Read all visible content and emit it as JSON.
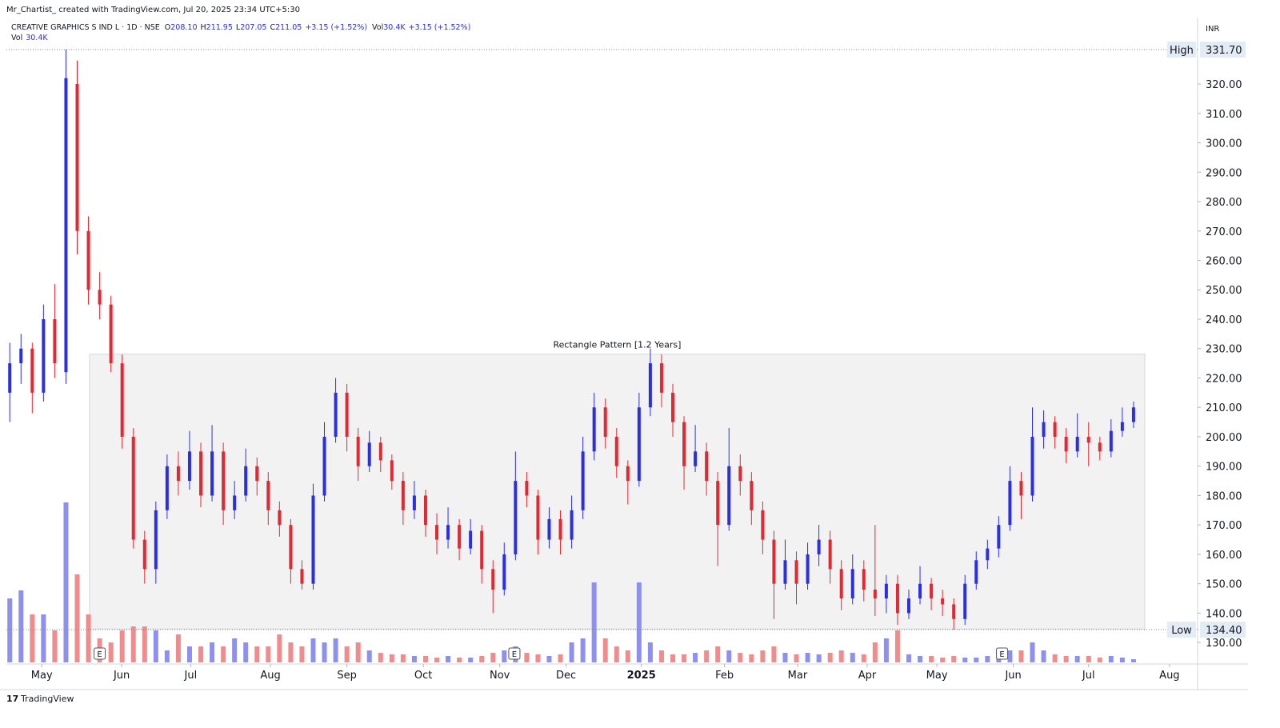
{
  "header": {
    "credit": "Mr_Chartist_ created with TradingView.com, Jul 20, 2025 23:34 UTC+5:30",
    "symbol": "CREATIVE GRAPHICS S IND L · 1D · NSE",
    "ohlc": [
      {
        "k": "O",
        "v": "208.10"
      },
      {
        "k": "H",
        "v": "211.95"
      },
      {
        "k": "L",
        "v": "207.05"
      },
      {
        "k": "C",
        "v": "211.05"
      }
    ],
    "change": "+3.15 (+1.52%)",
    "vol_key": "Vol",
    "vol_value": "30.4K",
    "vol_change": "+3.15 (+1.52%)",
    "vol_line_key": "Vol",
    "vol_line_value": "30.4K"
  },
  "footer": {
    "logo": "TradingView"
  },
  "chart_data": {
    "type": "candlestick",
    "currency": "INR",
    "categories": [
      null,
      null,
      null,
      null,
      null,
      null,
      null,
      null,
      null,
      null,
      null,
      null,
      null,
      null,
      null,
      null,
      null,
      null,
      null,
      null,
      null,
      null,
      null,
      null,
      null,
      null,
      null,
      null,
      null,
      null,
      null,
      null,
      null,
      null,
      null,
      null,
      null,
      null,
      null,
      null,
      null,
      null,
      null,
      null,
      null,
      null,
      null,
      null,
      null,
      null,
      null,
      null,
      null,
      null,
      null,
      null,
      null,
      null,
      null,
      null,
      null,
      null,
      null,
      null,
      null,
      null,
      null,
      null,
      null,
      null,
      null,
      null,
      null,
      null,
      null,
      null,
      null,
      null,
      null,
      null,
      null,
      null,
      null,
      null,
      null,
      null,
      null,
      null,
      null,
      null,
      null,
      null,
      null,
      null,
      null,
      null,
      null,
      null,
      null,
      null,
      null
    ],
    "open": [
      215,
      225,
      230,
      215,
      240,
      222,
      320,
      270,
      250,
      245,
      225,
      200,
      165,
      155,
      175,
      190,
      185,
      195,
      180,
      195,
      175,
      180,
      190,
      185,
      175,
      170,
      155,
      150,
      180,
      200,
      215,
      200,
      190,
      198,
      192,
      185,
      175,
      180,
      170,
      165,
      170,
      162,
      168,
      155,
      148,
      160,
      185,
      180,
      165,
      172,
      165,
      175,
      195,
      210,
      200,
      190,
      185,
      210,
      225,
      215,
      205,
      190,
      195,
      185,
      170,
      190,
      185,
      175,
      165,
      150,
      158,
      150,
      160,
      165,
      155,
      145,
      155,
      148,
      145,
      150,
      140,
      145,
      150,
      145,
      143,
      138,
      150,
      158,
      162,
      170,
      185,
      180,
      200,
      205,
      200,
      195,
      200,
      198,
      195,
      202,
      205
    ],
    "high": [
      232,
      235,
      232,
      245,
      252,
      331.7,
      328,
      275,
      256,
      248,
      228,
      203,
      168,
      178,
      194,
      195,
      202,
      198,
      204,
      198,
      185,
      196,
      193,
      188,
      178,
      172,
      158,
      184,
      205,
      220,
      218,
      203,
      202,
      200,
      194,
      188,
      185,
      182,
      174,
      176,
      172,
      172,
      170,
      158,
      164,
      195,
      188,
      182,
      176,
      175,
      180,
      200,
      215,
      213,
      203,
      192,
      215,
      230,
      228,
      218,
      207,
      204,
      198,
      188,
      203,
      194,
      188,
      178,
      168,
      165,
      161,
      164,
      170,
      168,
      158,
      160,
      158,
      170,
      153,
      153,
      148,
      156,
      152,
      148,
      145,
      153,
      161,
      165,
      173,
      190,
      188,
      210,
      209,
      207,
      203,
      208,
      205,
      200,
      206,
      210,
      212
    ],
    "low": [
      205,
      218,
      208,
      212,
      220,
      218,
      262,
      245,
      240,
      222,
      196,
      162,
      150,
      150,
      172,
      180,
      182,
      176,
      178,
      170,
      172,
      178,
      180,
      170,
      166,
      150,
      148,
      148,
      178,
      198,
      195,
      185,
      188,
      188,
      182,
      170,
      172,
      166,
      160,
      162,
      158,
      160,
      150,
      140,
      146,
      158,
      176,
      160,
      162,
      160,
      162,
      172,
      192,
      196,
      186,
      177,
      183,
      207,
      210,
      200,
      182,
      188,
      180,
      156,
      168,
      180,
      170,
      160,
      138,
      148,
      143,
      148,
      156,
      150,
      141,
      143,
      144,
      139,
      140,
      136,
      138,
      143,
      141,
      139,
      134.4,
      136,
      148,
      155,
      159,
      168,
      172,
      178,
      196,
      196,
      191,
      193,
      190,
      192,
      193,
      200,
      203
    ],
    "close": [
      225,
      230,
      215,
      240,
      225,
      322,
      270,
      250,
      245,
      225,
      200,
      165,
      155,
      175,
      190,
      185,
      195,
      180,
      195,
      175,
      180,
      190,
      185,
      175,
      170,
      155,
      150,
      180,
      200,
      215,
      200,
      190,
      198,
      192,
      185,
      175,
      180,
      170,
      165,
      170,
      162,
      168,
      155,
      148,
      160,
      185,
      180,
      165,
      172,
      165,
      175,
      195,
      210,
      200,
      190,
      185,
      210,
      225,
      215,
      205,
      190,
      195,
      185,
      170,
      190,
      185,
      175,
      165,
      150,
      158,
      150,
      160,
      165,
      155,
      145,
      155,
      148,
      145,
      150,
      140,
      145,
      150,
      145,
      143,
      138,
      150,
      158,
      162,
      170,
      185,
      180,
      200,
      205,
      200,
      195,
      200,
      198,
      195,
      202,
      205,
      210
    ],
    "volume": [
      608,
      684,
      456,
      456,
      304,
      1520,
      836,
      456,
      228,
      190,
      304,
      342,
      342,
      304,
      114,
      266,
      152,
      152,
      190,
      152,
      228,
      190,
      152,
      152,
      266,
      190,
      152,
      228,
      190,
      228,
      152,
      190,
      114,
      91,
      76,
      76,
      61,
      61,
      46,
      61,
      46,
      46,
      61,
      91,
      114,
      152,
      91,
      76,
      61,
      76,
      190,
      228,
      760,
      228,
      152,
      114,
      760,
      190,
      114,
      76,
      76,
      91,
      114,
      152,
      114,
      91,
      76,
      114,
      152,
      91,
      76,
      91,
      76,
      91,
      114,
      91,
      76,
      190,
      228,
      304,
      76,
      61,
      61,
      46,
      61,
      46,
      46,
      61,
      76,
      114,
      114,
      190,
      114,
      76,
      61,
      61,
      61,
      46,
      61,
      46,
      30.4
    ],
    "up_color": "#2b2ee8",
    "down_color": "#e8262f",
    "volume_up_color": "#8d90f0",
    "volume_down_color": "#f28b8b",
    "xlim": [
      -0.3,
      105.7
    ],
    "ylim": [
      122.7,
      342.6
    ],
    "xticks": [
      {
        "value": 2.85,
        "label": "May"
      },
      {
        "value": 9.96,
        "label": "Jun"
      },
      {
        "value": 16.1,
        "label": "Jul"
      },
      {
        "value": 23.2,
        "label": "Aug"
      },
      {
        "value": 30,
        "label": "Sep"
      },
      {
        "value": 36.8,
        "label": "Oct"
      },
      {
        "value": 43.6,
        "label": "Nov"
      },
      {
        "value": 49.5,
        "label": "Dec"
      },
      {
        "value": 56.2,
        "label": "2025"
      },
      {
        "value": 63.6,
        "label": "Feb"
      },
      {
        "value": 70.1,
        "label": "Mar"
      },
      {
        "value": 76.3,
        "label": "Apr"
      },
      {
        "value": 82.5,
        "label": "May"
      },
      {
        "value": 89.3,
        "label": "Jun"
      },
      {
        "value": 96,
        "label": "Jul"
      },
      {
        "value": 103.2,
        "label": "Aug"
      }
    ],
    "yticks": [
      {
        "value": 130,
        "label": "130.00"
      },
      {
        "value": 140,
        "label": "140.00"
      },
      {
        "value": 150,
        "label": "150.00"
      },
      {
        "value": 160,
        "label": "160.00"
      },
      {
        "value": 170,
        "label": "170.00"
      },
      {
        "value": 180,
        "label": "180.00"
      },
      {
        "value": 190,
        "label": "190.00"
      },
      {
        "value": 200,
        "label": "200.00"
      },
      {
        "value": 210,
        "label": "210.00"
      },
      {
        "value": 220,
        "label": "220.00"
      },
      {
        "value": 230,
        "label": "230.00"
      },
      {
        "value": 240,
        "label": "240.00"
      },
      {
        "value": 250,
        "label": "250.00"
      },
      {
        "value": 260,
        "label": "260.00"
      },
      {
        "value": 270,
        "label": "270.00"
      },
      {
        "value": 280,
        "label": "280.00"
      },
      {
        "value": 290,
        "label": "290.00"
      },
      {
        "value": 300,
        "label": "300.00"
      },
      {
        "value": 310,
        "label": "310.00"
      },
      {
        "value": 320,
        "label": "320.00"
      }
    ],
    "price_marks": [
      {
        "name": "High",
        "value": 331.7,
        "label": "331.70"
      },
      {
        "name": "Low",
        "value": 134.4,
        "label": "134.40"
      }
    ],
    "rectangle": {
      "label": "Rectangle Pattern [1.2 Years]",
      "x": [
        7.1,
        101
      ],
      "y": [
        134.6,
        228.1
      ]
    },
    "events": [
      {
        "x": 8,
        "label": "E"
      },
      {
        "x": 44.9,
        "label": "E"
      },
      {
        "x": 88.3,
        "label": "E"
      }
    ]
  }
}
